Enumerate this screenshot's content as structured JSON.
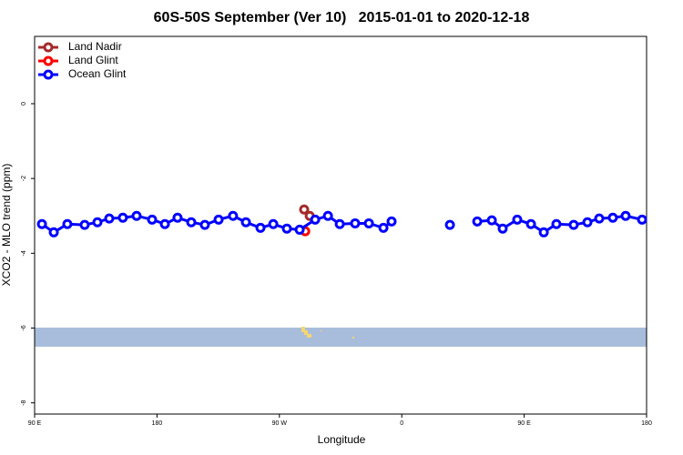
{
  "chart_data": {
    "type": "line",
    "title": "60S-50S September (Ver 10)   2015-01-01 to 2020-12-18",
    "xlabel": "Longitude",
    "ylabel": "XCO2 - MLO trend (ppm)",
    "xlim": [
      90,
      540
    ],
    "ylim": [
      -8.3,
      1.8
    ],
    "xticks": [
      {
        "value": 90,
        "label": "90 E"
      },
      {
        "value": 180,
        "label": "180"
      },
      {
        "value": 270,
        "label": "90 W"
      },
      {
        "value": 360,
        "label": "0"
      },
      {
        "value": 450,
        "label": "90 E"
      },
      {
        "value": 540,
        "label": "180"
      }
    ],
    "yticks": [
      0,
      -2,
      -4,
      -6,
      -8
    ],
    "legend": "top-left",
    "series": [
      {
        "name": "Land Nadir",
        "color": "#a52a2a",
        "x": [
          288.2,
          292.3
        ],
        "values": [
          -2.83,
          -3.0
        ]
      },
      {
        "name": "Land Glint",
        "color": "#ff0000",
        "x": [
          289.0
        ],
        "values": [
          -3.41
        ]
      },
      {
        "name": "Ocean Glint",
        "color": "#0000ff",
        "x": [
          95.4,
          104.1,
          114.1,
          126.8,
          136.2,
          144.9,
          154.9,
          165.0,
          176.4,
          185.8,
          195.1,
          205.2,
          215.2,
          225.3,
          235.9,
          245.4,
          256.1,
          265.5,
          275.5,
          284.9,
          296.3,
          305.7,
          314.4,
          325.7,
          335.8,
          346.5,
          352.5,
          null,
          395.4,
          null,
          415.5,
          426.2,
          434.2,
          444.9,
          455.0,
          464.4,
          473.7,
          486.4,
          496.5,
          505.2,
          515.2,
          524.6,
          536.7
        ],
        "values": [
          -3.22,
          -3.44,
          -3.22,
          -3.24,
          -3.17,
          -3.07,
          -3.05,
          -3.0,
          -3.1,
          -3.22,
          -3.05,
          -3.17,
          -3.24,
          -3.1,
          -3.0,
          -3.17,
          -3.32,
          -3.22,
          -3.34,
          -3.37,
          -3.1,
          -3.0,
          -3.22,
          -3.2,
          -3.2,
          -3.32,
          -3.15,
          null,
          -3.24,
          null,
          -3.15,
          -3.12,
          -3.34,
          -3.1,
          -3.22,
          -3.44,
          -3.22,
          -3.24,
          -3.17,
          -3.07,
          -3.05,
          -3.0,
          -3.1
        ]
      }
    ]
  }
}
